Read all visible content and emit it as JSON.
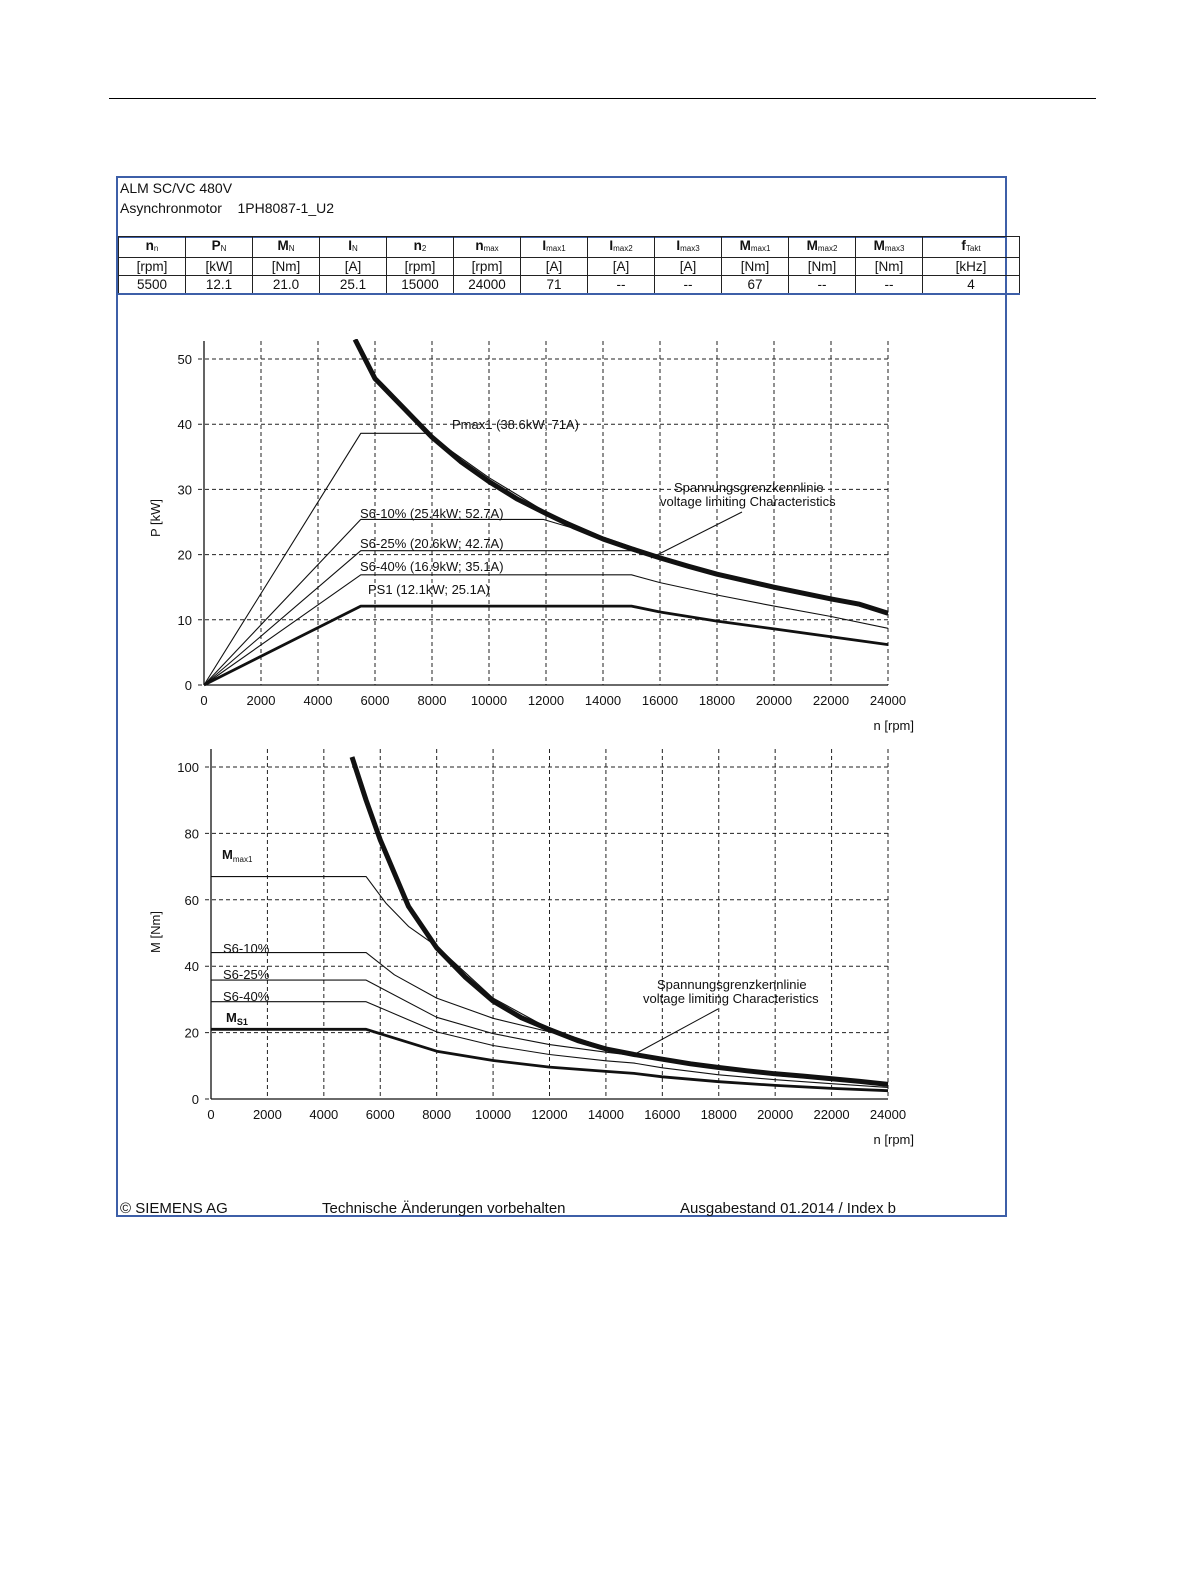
{
  "header": {
    "line1": "ALM SC/VC 480V",
    "line2_prefix": "Asynchronmotor",
    "line2_model": "1PH8087-1_U2"
  },
  "specs": {
    "columns": [
      {
        "sym": "n",
        "sub": "n",
        "unit": "[rpm]",
        "value": "5500"
      },
      {
        "sym": "P",
        "sub": "N",
        "unit": "[kW]",
        "value": "12.1"
      },
      {
        "sym": "M",
        "sub": "N",
        "unit": "[Nm]",
        "value": "21.0"
      },
      {
        "sym": "I",
        "sub": "N",
        "unit": "[A]",
        "value": "25.1"
      },
      {
        "sym": "n",
        "sub": "2",
        "unit": "[rpm]",
        "value": "15000"
      },
      {
        "sym": "n",
        "sub": "max",
        "unit": "[rpm]",
        "value": "24000"
      },
      {
        "sym": "I",
        "sub": "max1",
        "unit": "[A]",
        "value": "71"
      },
      {
        "sym": "I",
        "sub": "max2",
        "unit": "[A]",
        "value": "--"
      },
      {
        "sym": "I",
        "sub": "max3",
        "unit": "[A]",
        "value": "--"
      },
      {
        "sym": "M",
        "sub": "max1",
        "unit": "[Nm]",
        "value": "67"
      },
      {
        "sym": "M",
        "sub": "max2",
        "unit": "[Nm]",
        "value": "--"
      },
      {
        "sym": "M",
        "sub": "max3",
        "unit": "[Nm]",
        "value": "--"
      },
      {
        "sym": "f",
        "sub": "Takt",
        "unit": "[kHz]",
        "value": "4"
      }
    ]
  },
  "footer": {
    "copyright": "© SIEMENS AG",
    "notice": "Technische Änderungen vorbehalten",
    "edition": "Ausgabestand 01.2014 / Index b"
  },
  "chart_data": [
    {
      "type": "line",
      "xlabel": "n [rpm]",
      "ylabel": "P [kW]",
      "xlim": [
        0,
        24000
      ],
      "ylim": [
        0,
        50
      ],
      "xticks": [
        0,
        2000,
        4000,
        6000,
        8000,
        10000,
        12000,
        14000,
        16000,
        18000,
        20000,
        22000,
        24000
      ],
      "yticks": [
        0,
        10,
        20,
        30,
        40,
        50
      ],
      "grid": true,
      "annotations": [
        "Spannungsgrenzkennlinie",
        "voltage limiting  Characteristics"
      ],
      "series": [
        {
          "name": "Pmax1 (38.6kW; 71A)",
          "weight": "thin",
          "points": [
            [
              0,
              0
            ],
            [
              5500,
              38.6
            ],
            [
              7800,
              38.6
            ],
            [
              10000,
              31.8
            ],
            [
              12000,
              26.5
            ],
            [
              14000,
              22.7
            ],
            [
              15900,
              19.8
            ],
            [
              18000,
              17.2
            ],
            [
              20000,
              15.2
            ],
            [
              22000,
              13.4
            ],
            [
              24000,
              11.1
            ]
          ]
        },
        {
          "name": "S6-10% (25.4kW; 52.7A)",
          "weight": "thin",
          "points": [
            [
              0,
              0
            ],
            [
              5500,
              25.4
            ],
            [
              11900,
              25.4
            ],
            [
              14000,
              22.7
            ],
            [
              15900,
              19.8
            ],
            [
              18000,
              17.2
            ],
            [
              20000,
              15.2
            ],
            [
              22000,
              13.4
            ],
            [
              24000,
              11.1
            ]
          ]
        },
        {
          "name": "S6-25% (20.6kW; 42.7A)",
          "weight": "thin",
          "points": [
            [
              0,
              0
            ],
            [
              5500,
              20.6
            ],
            [
              15000,
              20.6
            ],
            [
              16000,
              19.3
            ],
            [
              18000,
              16.9
            ],
            [
              20000,
              14.9
            ],
            [
              22000,
              13.2
            ],
            [
              24000,
              11.0
            ]
          ]
        },
        {
          "name": "S6-40% (16.9kW; 35.1A)",
          "weight": "thin",
          "points": [
            [
              0,
              0
            ],
            [
              5500,
              16.9
            ],
            [
              15000,
              16.9
            ],
            [
              16000,
              15.7
            ],
            [
              18000,
              13.8
            ],
            [
              20000,
              12.1
            ],
            [
              22000,
              10.5
            ],
            [
              24000,
              8.7
            ]
          ]
        },
        {
          "name": "PS1 (12.1kW; 25.1A)",
          "weight": "bold",
          "points": [
            [
              0,
              0
            ],
            [
              5500,
              12.1
            ],
            [
              15000,
              12.1
            ],
            [
              16000,
              11.2
            ],
            [
              18000,
              9.8
            ],
            [
              20000,
              8.6
            ],
            [
              22000,
              7.4
            ],
            [
              24000,
              6.2
            ]
          ]
        },
        {
          "name": "Spannungsgrenzkennlinie",
          "weight": "extra-bold",
          "points": [
            [
              5300,
              53
            ],
            [
              6000,
              47
            ],
            [
              7000,
              42.5
            ],
            [
              8000,
              38
            ],
            [
              9000,
              34.3
            ],
            [
              10000,
              31.2
            ],
            [
              11000,
              28.5
            ],
            [
              12000,
              26.3
            ],
            [
              13000,
              24.2
            ],
            [
              14000,
              22.4
            ],
            [
              15000,
              20.9
            ],
            [
              16000,
              19.5
            ],
            [
              17000,
              18.2
            ],
            [
              18000,
              17.0
            ],
            [
              19000,
              16.0
            ],
            [
              20000,
              15.0
            ],
            [
              21000,
              14.1
            ],
            [
              22000,
              13.2
            ],
            [
              23000,
              12.4
            ],
            [
              24000,
              11.0
            ]
          ]
        }
      ]
    },
    {
      "type": "line",
      "xlabel": "n [rpm]",
      "ylabel": "M [Nm]",
      "xlim": [
        0,
        24000
      ],
      "ylim": [
        0,
        100
      ],
      "xticks": [
        0,
        2000,
        4000,
        6000,
        8000,
        10000,
        12000,
        14000,
        16000,
        18000,
        20000,
        22000,
        24000
      ],
      "yticks": [
        0,
        20,
        40,
        60,
        80,
        100
      ],
      "grid": true,
      "annotations": [
        "Spannungsgrenzkennlinie",
        "voltage limiting  Characteristics"
      ],
      "series": [
        {
          "name": "Mmax1",
          "weight": "thin",
          "points": [
            [
              0,
              67
            ],
            [
              5500,
              67
            ],
            [
              6200,
              59
            ],
            [
              7000,
              52
            ],
            [
              8000,
              46
            ],
            [
              10000,
              30.4
            ],
            [
              12000,
              21.1
            ],
            [
              14000,
              15.5
            ],
            [
              16000,
              11.9
            ],
            [
              18000,
              9.2
            ],
            [
              20000,
              7.3
            ],
            [
              22000,
              5.8
            ],
            [
              24000,
              4.4
            ]
          ]
        },
        {
          "name": "S6-10%",
          "weight": "thin",
          "points": [
            [
              0,
              44.1
            ],
            [
              5500,
              44.1
            ],
            [
              6500,
              37.4
            ],
            [
              8000,
              30.4
            ],
            [
              10000,
              24.3
            ],
            [
              12000,
              20.2
            ],
            [
              14000,
              15.5
            ],
            [
              16000,
              11.9
            ],
            [
              18000,
              9.2
            ],
            [
              20000,
              7.3
            ],
            [
              22000,
              5.8
            ],
            [
              24000,
              4.4
            ]
          ]
        },
        {
          "name": "S6-25%",
          "weight": "thin",
          "points": [
            [
              0,
              35.8
            ],
            [
              5500,
              35.8
            ],
            [
              8000,
              24.6
            ],
            [
              10000,
              19.7
            ],
            [
              12000,
              16.4
            ],
            [
              14000,
              14.1
            ],
            [
              15000,
              13.1
            ],
            [
              16000,
              11.5
            ],
            [
              18000,
              9.0
            ],
            [
              20000,
              7.1
            ],
            [
              22000,
              5.7
            ],
            [
              24000,
              4.4
            ]
          ]
        },
        {
          "name": "S6-40%",
          "weight": "thin",
          "points": [
            [
              0,
              29.3
            ],
            [
              5500,
              29.3
            ],
            [
              8000,
              20.2
            ],
            [
              10000,
              16.1
            ],
            [
              12000,
              13.4
            ],
            [
              14000,
              11.5
            ],
            [
              15000,
              10.8
            ],
            [
              16000,
              9.4
            ],
            [
              18000,
              7.3
            ],
            [
              20000,
              5.8
            ],
            [
              22000,
              4.6
            ],
            [
              24000,
              3.5
            ]
          ]
        },
        {
          "name": "MS1",
          "weight": "bold",
          "points": [
            [
              0,
              21.0
            ],
            [
              5500,
              21.0
            ],
            [
              8000,
              14.4
            ],
            [
              10000,
              11.6
            ],
            [
              12000,
              9.6
            ],
            [
              14000,
              8.3
            ],
            [
              15000,
              7.7
            ],
            [
              16000,
              6.7
            ],
            [
              18000,
              5.2
            ],
            [
              20000,
              4.1
            ],
            [
              22000,
              3.2
            ],
            [
              24000,
              2.5
            ]
          ]
        },
        {
          "name": "Spannungsgrenzkennlinie",
          "weight": "extra-bold",
          "points": [
            [
              5000,
              103
            ],
            [
              5500,
              90
            ],
            [
              6000,
              78
            ],
            [
              7000,
              58
            ],
            [
              8000,
              45.5
            ],
            [
              9000,
              36.8
            ],
            [
              10000,
              29.5
            ],
            [
              11000,
              24.5
            ],
            [
              12000,
              20.9
            ],
            [
              13000,
              17.6
            ],
            [
              14000,
              15.1
            ],
            [
              15000,
              13.4
            ],
            [
              16000,
              12.0
            ],
            [
              17000,
              10.6
            ],
            [
              18000,
              9.5
            ],
            [
              19000,
              8.5
            ],
            [
              20000,
              7.6
            ],
            [
              21000,
              6.9
            ],
            [
              22000,
              6.1
            ],
            [
              23000,
              5.3
            ],
            [
              24000,
              4.4
            ]
          ]
        }
      ]
    }
  ]
}
